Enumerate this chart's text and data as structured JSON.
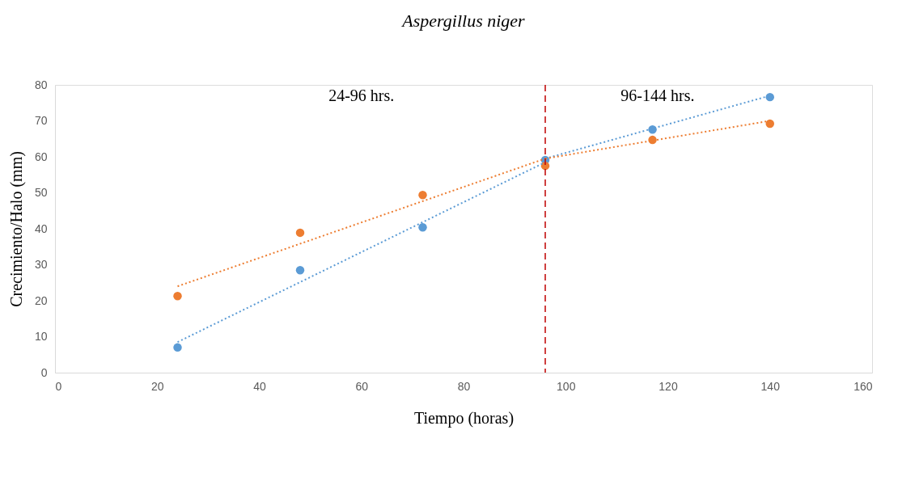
{
  "chart_data": {
    "type": "scatter",
    "title": "Aspergillus niger",
    "xlabel": "Tiempo (horas)",
    "ylabel": "Crecimiento/Halo (mm)",
    "xlim": [
      0,
      160
    ],
    "xticks": [
      0,
      20,
      40,
      60,
      80,
      100,
      120,
      140,
      160
    ],
    "ylim": [
      0,
      80
    ],
    "yticks": [
      0,
      10,
      20,
      30,
      40,
      50,
      60,
      70,
      80
    ],
    "grid": false,
    "series": [
      {
        "color": "#5b9bd5",
        "marker": "circle",
        "x": [
          24,
          48,
          72,
          96,
          117,
          140
        ],
        "values": [
          7.0,
          28.5,
          40.4,
          59.1,
          67.6,
          76.6
        ]
      },
      {
        "color": "#ed7d31",
        "marker": "circle",
        "x": [
          24,
          48,
          72,
          96,
          117,
          140
        ],
        "values": [
          21.3,
          38.9,
          49.4,
          57.5,
          64.7,
          69.2
        ]
      },
      {
        "type": "line",
        "color": "#5b9bd5",
        "line_style": "dotted",
        "x": [
          24,
          96
        ],
        "values": [
          8.5,
          58.5
        ]
      },
      {
        "type": "line",
        "color": "#ed7d31",
        "line_style": "dotted",
        "x": [
          24,
          96
        ],
        "values": [
          24,
          59.5
        ]
      },
      {
        "type": "line",
        "color": "#5b9bd5",
        "line_style": "dotted",
        "x": [
          96,
          140
        ],
        "values": [
          59.5,
          77
        ]
      },
      {
        "type": "line",
        "color": "#ed7d31",
        "line_style": "dotted",
        "x": [
          96,
          140
        ],
        "values": [
          59.5,
          70
        ]
      }
    ],
    "ref_lines": [
      {
        "axis": "x",
        "value": 96,
        "color": "#c00000",
        "line_style": "dashed"
      }
    ],
    "annotations": [
      "24-96 hrs.",
      "96-144 hrs."
    ]
  }
}
